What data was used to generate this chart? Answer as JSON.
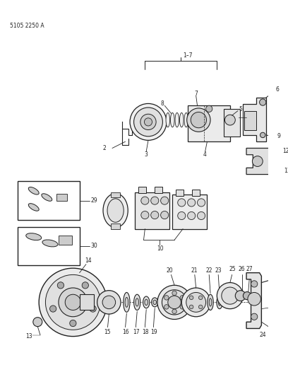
{
  "bg_color": "#ffffff",
  "line_color": "#222222",
  "text_color": "#222222",
  "fig_width": 4.08,
  "fig_height": 5.33,
  "dpi": 100,
  "part_number": "5105 2250 A"
}
